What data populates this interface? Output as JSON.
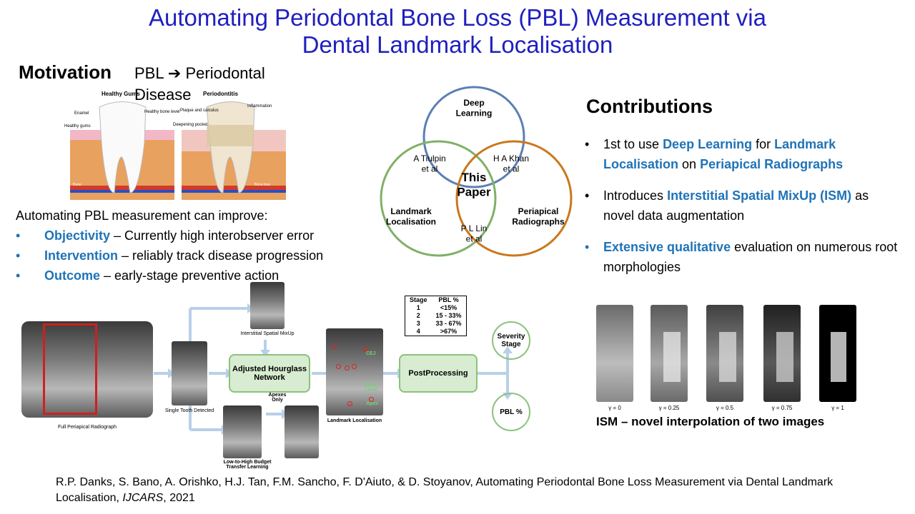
{
  "title": {
    "line1": "Automating Periodontal Bone Loss (PBL) Measurement via",
    "line2": "Dental Landmark Localisation"
  },
  "motivation": {
    "heading": "Motivation",
    "subtitle_a": "PBL",
    "subtitle_b": "Periodontal Disease",
    "image_labels": {
      "healthy": "Healthy Gums",
      "periodontitis": "Periodontitis",
      "enamel": "Enamel",
      "healthy_gums": "Healthy gums",
      "healthy_bone": "Healthy bone level",
      "plaque": "Plaque and calculus",
      "inflammation": "Inflammation",
      "deepening": "Deepening pocket",
      "bone": "Bone",
      "bone_loss": "Bone loss"
    },
    "intro": "Automating  PBL measurement  can improve:",
    "bullets": [
      {
        "term": "Objectivity",
        "text": " – Currently  high interobserver error"
      },
      {
        "term": "Intervention",
        "text": " – reliably track disease progression"
      },
      {
        "term": "Outcome",
        "text": " – early-stage preventive action"
      }
    ]
  },
  "venn": {
    "top": "Deep\nLearning",
    "left": "Landmark\nLocalisation",
    "right": "Periapical\nRadiographs",
    "left_overlap": "A Tiulpin\net al",
    "right_overlap": "H A Khan\net al",
    "bottom_overlap": "P L Lin\net al",
    "center": "This\nPaper",
    "colors": {
      "top": "#5b7fb5",
      "left": "#7fb068",
      "right": "#c9781d"
    }
  },
  "contributions": {
    "heading": "Contributions",
    "items": [
      {
        "parts": [
          [
            "1st to use ",
            false
          ],
          [
            "Deep Learning",
            true
          ],
          [
            " for ",
            false
          ],
          [
            "Landmark Localisation",
            true
          ],
          [
            " on ",
            false
          ],
          [
            "Periapical Radiographs",
            true
          ]
        ]
      },
      {
        "parts": [
          [
            "Introduces ",
            false
          ],
          [
            "Interstitial Spatial MixUp (ISM)",
            true
          ],
          [
            " as novel data augmentation",
            false
          ]
        ]
      },
      {
        "parts": [
          [
            "Extensive qualitative",
            true
          ],
          [
            " evaluation on numerous  root morphologies",
            false
          ]
        ]
      }
    ]
  },
  "pipeline": {
    "full_radiograph": "Full Periapical Radiograph",
    "single_tooth": "Single Tooth Detected",
    "ism": "Interstitial Spatial MixUp",
    "network": "Adjusted Hourglass Network",
    "apexes_only": "Apexes Only",
    "low_high": "Low-to-High Budget Transfer Learning",
    "landmark": "Landmark Localisation",
    "cej": "CEJ",
    "bone_level": "Bone Level",
    "apex": "Apex",
    "postprocessing": "PostProcessing",
    "severity": "Severity Stage",
    "pbl": "PBL %",
    "stage_table": {
      "headers": [
        "Stage",
        "PBL %"
      ],
      "rows": [
        [
          "1",
          "<15%"
        ],
        [
          "2",
          "15 - 33%"
        ],
        [
          "3",
          "33 - 67%"
        ],
        [
          "4",
          ">67%"
        ]
      ]
    }
  },
  "ism": {
    "gammas": [
      "γ = 0",
      "γ = 0.25",
      "γ = 0.5",
      "γ = 0.75",
      "γ = 1"
    ],
    "caption": "ISM – novel interpolation of two images"
  },
  "citation": {
    "text": "R.P. Danks, S. Bano, A. Orishko, H.J. Tan, F.M. Sancho, F. D'Aiuto, & D. Stoyanov, Automating Periodontal Bone Loss Measurement via Dental Landmark Localisation, ",
    "journal": "IJCARS",
    "year": ", 2021"
  },
  "colors": {
    "title": "#1f1fbf",
    "accent": "#1f73b7",
    "flow_green": "#d7ecd0",
    "marker_red": "#e02020"
  }
}
